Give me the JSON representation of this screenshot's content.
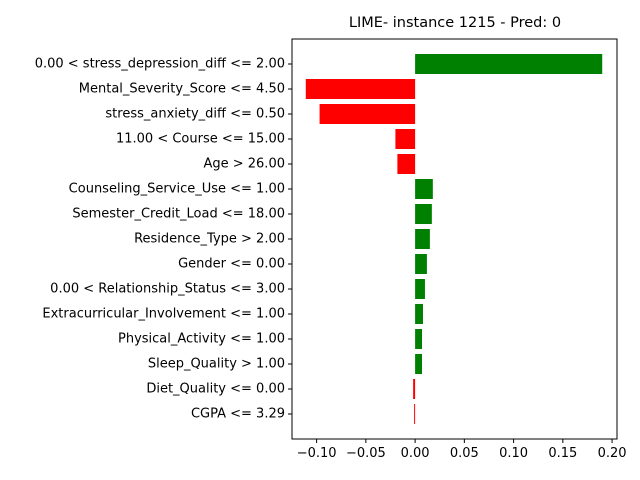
{
  "chart_data": {
    "type": "bar",
    "orientation": "horizontal",
    "title": "LIME- instance 1215 - Pred: 0",
    "xlabel": "",
    "ylabel": "",
    "xlim": [
      -0.125,
      0.205
    ],
    "xticks": [
      -0.1,
      -0.05,
      0.0,
      0.05,
      0.1,
      0.15,
      0.2
    ],
    "xtick_labels": [
      "−0.10",
      "−0.05",
      "0.00",
      "0.05",
      "0.10",
      "0.15",
      "0.20"
    ],
    "grid": false,
    "legend": "none",
    "colors": {
      "positive": "#008000",
      "negative": "#ff0000"
    },
    "categories": [
      "0.00 < stress_depression_diff <= 2.00",
      "Mental_Severity_Score <= 4.50",
      "stress_anxiety_diff <= 0.50",
      "11.00 < Course <= 15.00",
      "Age > 26.00",
      "Counseling_Service_Use <= 1.00",
      "Semester_Credit_Load <= 18.00",
      "Residence_Type > 2.00",
      "Gender <= 0.00",
      "0.00 < Relationship_Status <= 3.00",
      "Extracurricular_Involvement <= 1.00",
      "Physical_Activity <= 1.00",
      "Sleep_Quality > 1.00",
      "Diet_Quality <= 0.00",
      "CGPA <= 3.29"
    ],
    "values": [
      0.19,
      -0.111,
      -0.097,
      -0.02,
      -0.018,
      0.018,
      0.017,
      0.015,
      0.012,
      0.01,
      0.008,
      0.007,
      0.007,
      -0.002,
      -0.001
    ]
  }
}
